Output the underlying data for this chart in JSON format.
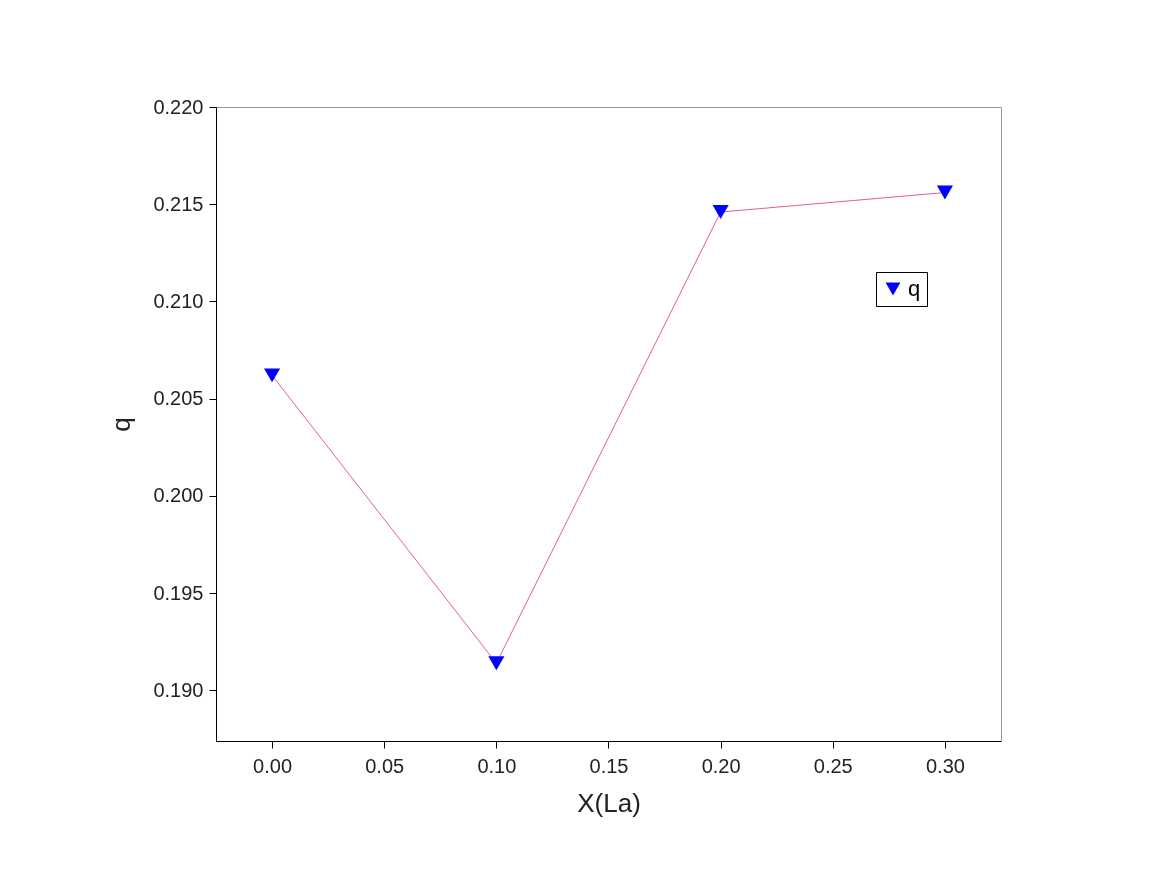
{
  "chart_data": {
    "type": "line",
    "xlabel": "X(La)",
    "ylabel": "q",
    "x": [
      0.0,
      0.1,
      0.2,
      0.3
    ],
    "series": [
      {
        "name": "q",
        "color": "#0000ff",
        "values": [
          0.2062,
          0.1914,
          0.2146,
          0.2156
        ]
      }
    ],
    "xlim": [
      -0.025,
      0.325
    ],
    "xticks": [
      {
        "value": 0,
        "label": "0.00"
      },
      {
        "value": 0.05,
        "label": "0.05"
      },
      {
        "value": 0.1,
        "label": "0.10"
      },
      {
        "value": 0.15,
        "label": "0.15"
      },
      {
        "value": 0.2,
        "label": "0.20"
      },
      {
        "value": 0.25,
        "label": "0.25"
      },
      {
        "value": 0.3,
        "label": "0.30"
      }
    ],
    "ylim": [
      0.1874,
      0.22
    ],
    "yticks": [
      {
        "value": 0.19,
        "label": "0.190"
      },
      {
        "value": 0.195,
        "label": "0.195"
      },
      {
        "value": 0.2,
        "label": "0.200"
      },
      {
        "value": 0.205,
        "label": "0.205"
      },
      {
        "value": 0.21,
        "label": "0.210"
      },
      {
        "value": 0.215,
        "label": "0.215"
      },
      {
        "value": 0.22,
        "label": "0.220"
      }
    ],
    "marker": "triangle",
    "line_style": "solid",
    "grid": false,
    "legend": "top right"
  }
}
